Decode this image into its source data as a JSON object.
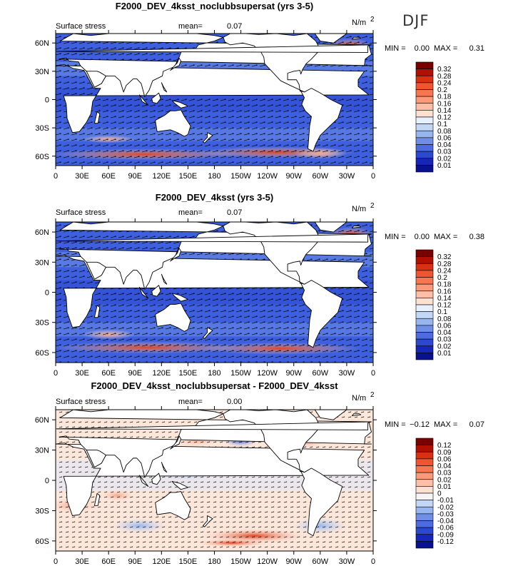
{
  "season": "DJF",
  "units": "N/m",
  "units_sup": "2",
  "colorbar_positive": {
    "levels": [
      "0.32",
      "0.28",
      "0.24",
      "0.2",
      "0.18",
      "0.16",
      "0.14",
      "0.12",
      "0.1",
      "0.08",
      "0.06",
      "0.04",
      "0.03",
      "0.02",
      "0.01"
    ],
    "colors": [
      "#7a0000",
      "#b01000",
      "#d83010",
      "#ee5530",
      "#f7764f",
      "#fa9a78",
      "#fcbea4",
      "#fde0d2",
      "#e6f0ff",
      "#c2d6f5",
      "#98b6ee",
      "#6f8fe6",
      "#4c6be0",
      "#2b49d0",
      "#1626b8",
      "#0a1190"
    ]
  },
  "colorbar_diff": {
    "levels": [
      "0.12",
      "0.09",
      "0.06",
      "0.04",
      "0.03",
      "0.02",
      "0.01",
      "0",
      "-0.01",
      "-0.02",
      "-0.03",
      "-0.04",
      "-0.06",
      "-0.09",
      "-0.12"
    ],
    "colors": [
      "#7a0000",
      "#b01000",
      "#d83010",
      "#ee5530",
      "#f7764f",
      "#fa9a78",
      "#fcbea4",
      "#fde0d2",
      "#f6f4f4",
      "#c2d6f5",
      "#98b6ee",
      "#6f8fe6",
      "#4c6be0",
      "#2b49d0",
      "#1626b8",
      "#0a1190"
    ]
  },
  "chart_data": [
    {
      "type": "heatmap",
      "title": "F2000_DEV_4ksst_noclubbsupersat (yrs 3-5)",
      "left_label": "Surface stress",
      "mean_label": "mean=",
      "mean": "0.07",
      "min_label": "MIN =",
      "min": "0.00",
      "max_label": "MAX =",
      "max": "0.31",
      "xticks": [
        "0",
        "30E",
        "60E",
        "90E",
        "120E",
        "150E",
        "180",
        "150W",
        "120W",
        "90W",
        "60W",
        "30W",
        "0"
      ],
      "yticks": [
        "60N",
        "30N",
        "0",
        "30S",
        "60S"
      ],
      "xlim": [
        0,
        360
      ],
      "ylim": [
        -70,
        70
      ]
    },
    {
      "type": "heatmap",
      "title": "F2000_DEV_4ksst (yrs 3-5)",
      "left_label": "Surface stress",
      "mean_label": "mean=",
      "mean": "0.07",
      "min_label": "MIN =",
      "min": "0.00",
      "max_label": "MAX =",
      "max": "0.38",
      "xticks": [
        "0",
        "30E",
        "60E",
        "90E",
        "120E",
        "150E",
        "180",
        "150W",
        "120W",
        "90W",
        "60W",
        "30W",
        "0"
      ],
      "yticks": [
        "60N",
        "30N",
        "0",
        "30S",
        "60S"
      ],
      "xlim": [
        0,
        360
      ],
      "ylim": [
        -70,
        70
      ]
    },
    {
      "type": "heatmap",
      "title": "F2000_DEV_4ksst_noclubbsupersat - F2000_DEV_4ksst",
      "left_label": "Surface stress",
      "mean_label": "mean=",
      "mean": "0.00",
      "min_label": "MIN =",
      "min": "−0.12",
      "max_label": "MAX =",
      "max": "0.07",
      "xticks": [
        "0",
        "30E",
        "60E",
        "90E",
        "120E",
        "150E",
        "180",
        "150W",
        "120W",
        "90W",
        "60W",
        "30W",
        "0"
      ],
      "yticks": [
        "60N",
        "30N",
        "0",
        "30S",
        "60S"
      ],
      "xlim": [
        0,
        360
      ],
      "ylim": [
        -70,
        70
      ]
    }
  ]
}
